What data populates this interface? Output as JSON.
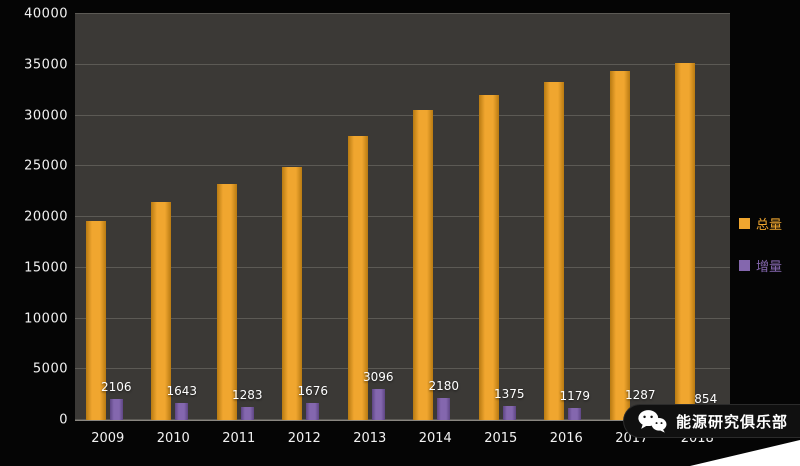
{
  "chart_data": {
    "type": "bar",
    "title": "",
    "categories": [
      "2009",
      "2010",
      "2011",
      "2012",
      "2013",
      "2014",
      "2015",
      "2016",
      "2017",
      "2018"
    ],
    "series": [
      {
        "name": "总量",
        "color": "#F0A62F",
        "color_dark": "#B87A12",
        "show_labels": false,
        "values": [
          19600,
          21500,
          23300,
          24900,
          28000,
          30500,
          32000,
          33300,
          34400,
          35200
        ]
      },
      {
        "name": "增量",
        "color": "#8467AE",
        "color_dark": "#5E4684",
        "show_labels": true,
        "values": [
          2106,
          1643,
          1283,
          1676,
          3096,
          2180,
          1375,
          1179,
          1287,
          854
        ]
      }
    ],
    "ylim": [
      0,
      40000
    ],
    "yticks": [
      0,
      5000,
      10000,
      15000,
      20000,
      25000,
      30000,
      35000,
      40000
    ],
    "xlabel": "",
    "ylabel": "",
    "grid": true,
    "legend_position": "right",
    "plot_bg": "#3b3936",
    "page_bg": "#050505",
    "grid_color": "#5c5a55",
    "axis_text_color": "#f2f2f2",
    "bar_label_color": "#ffffff"
  },
  "watermark": {
    "text": "能源研究俱乐部",
    "icon": "wechat-icon"
  }
}
